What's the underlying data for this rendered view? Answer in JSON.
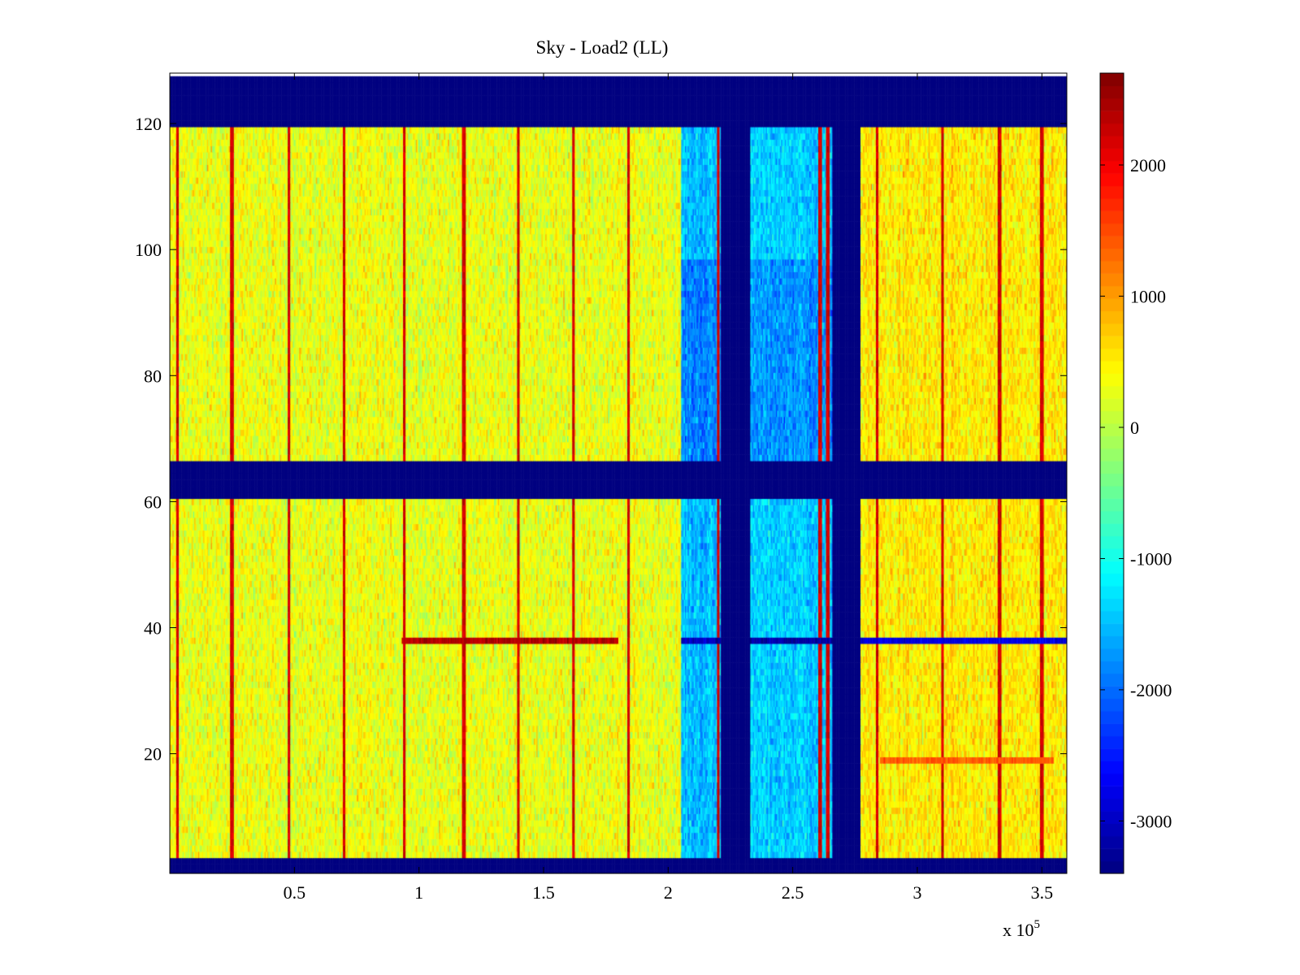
{
  "chart_data": {
    "type": "heatmap",
    "title": "Sky - Load2 (LL)",
    "xlabel": "",
    "ylabel": "",
    "x_multiplier_label": "x 10",
    "x_multiplier_exponent": "5",
    "xlim": [
      0,
      3.6
    ],
    "ylim": [
      1,
      128
    ],
    "x_ticks": [
      0.5,
      1,
      1.5,
      2,
      2.5,
      3,
      3.5
    ],
    "x_tick_labels": [
      "0.5",
      "1",
      "1.5",
      "2",
      "2.5",
      "3",
      "3.5"
    ],
    "y_ticks": [
      20,
      40,
      60,
      80,
      100,
      120
    ],
    "y_tick_labels": [
      "20",
      "40",
      "60",
      "80",
      "100",
      "120"
    ],
    "colormap": "jet",
    "colorbar": {
      "range": [
        -3400,
        2700
      ],
      "ticks": [
        -3000,
        -2000,
        -1000,
        0,
        1000,
        2000
      ],
      "tick_labels": [
        "-3000",
        "-2000",
        "-1000",
        "0",
        "1000",
        "2000"
      ]
    },
    "masked_row_bands": [
      [
        1,
        4
      ],
      [
        61.5,
        67.5
      ],
      [
        121,
        128
      ]
    ],
    "masked_column_bands": [
      [
        2.21,
        2.33
      ],
      [
        2.66,
        2.77
      ]
    ],
    "region_levels": [
      {
        "x": [
          0,
          2.05
        ],
        "mean": 300
      },
      {
        "x": [
          2.05,
          2.21
        ],
        "mean": -1500
      },
      {
        "x": [
          2.33,
          2.66
        ],
        "mean": -1400
      },
      {
        "x": [
          2.77,
          3.6
        ],
        "mean": 500
      }
    ],
    "vertical_streaks_x": [
      0.03,
      0.25,
      0.48,
      0.7,
      0.94,
      1.18,
      1.4,
      1.62,
      1.84,
      2.2,
      2.61,
      2.64,
      2.84,
      3.1,
      3.33,
      3.5
    ],
    "horizontal_features": [
      {
        "y": 39,
        "x": [
          0.93,
          1.8
        ],
        "value": 2400
      },
      {
        "y": 39,
        "x": [
          2.05,
          2.21
        ],
        "value": -3000
      },
      {
        "y": 39,
        "x": [
          2.33,
          2.66
        ],
        "value": -3200
      },
      {
        "y": 39,
        "x": [
          2.77,
          3.6
        ],
        "value": -2800
      },
      {
        "y": 20,
        "x": [
          2.85,
          3.55
        ],
        "value": 1400
      }
    ]
  }
}
